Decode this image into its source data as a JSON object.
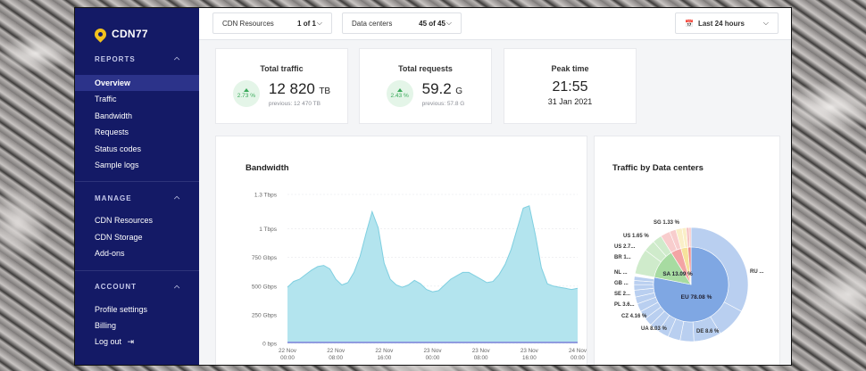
{
  "sidebar": {
    "logo": "CDN77",
    "sections": [
      {
        "title": "REPORTS",
        "items": [
          "Overview",
          "Traffic",
          "Bandwidth",
          "Requests",
          "Status codes",
          "Sample logs"
        ]
      },
      {
        "title": "MANAGE",
        "items": [
          "CDN Resources",
          "CDN Storage",
          "Add-ons"
        ]
      },
      {
        "title": "ACCOUNT",
        "items": [
          "Profile settings",
          "Billing",
          "Log out"
        ]
      }
    ]
  },
  "topbar": {
    "resources_label": "CDN Resources",
    "resources_value": "1 of 1",
    "dc_label": "Data centers",
    "dc_value": "45 of 45",
    "range_label": "Last 24 hours"
  },
  "stats": {
    "traffic": {
      "title": "Total traffic",
      "change": "2.73 %",
      "value": "12 820",
      "unit": "TB",
      "previous": "previous: 12 470 TB"
    },
    "requests": {
      "title": "Total requests",
      "change": "2.43 %",
      "value": "59.2",
      "unit": "G",
      "previous": "previous: 57.8 G"
    },
    "peak": {
      "title": "Peak time",
      "time": "21:55",
      "date": "31 Jan 2021"
    }
  },
  "bandwidth": {
    "title": "Bandwidth",
    "colors": {
      "area": "#b3e4ee",
      "line": "#7fcfe0",
      "baseline": "#7b6fd6"
    }
  },
  "traffic_dc": {
    "title": "Traffic by Data centers"
  },
  "chart_data": [
    {
      "type": "area",
      "title": "Bandwidth",
      "y_ticks": [
        "1.3 Tbps",
        "1 Tbps",
        "750 Gbps",
        "500 Gbps",
        "250 Gbps",
        "0 bps"
      ],
      "ylim": [
        0,
        1300
      ],
      "y_unit": "Gbps",
      "x_ticks": [
        "22 Nov 00:00",
        "22 Nov 08:00",
        "22 Nov 16:00",
        "23 Nov 00:00",
        "23 Nov 08:00",
        "23 Nov 16:00",
        "24 Nov 00:00"
      ],
      "x": [
        0,
        1,
        2,
        3,
        4,
        5,
        6,
        7,
        8,
        9,
        10,
        11,
        12,
        13,
        14,
        15,
        16,
        17,
        18,
        19,
        20,
        21,
        22,
        23,
        24,
        25,
        26,
        27,
        28,
        29,
        30,
        31,
        32,
        33,
        34,
        35,
        36,
        37,
        38,
        39,
        40,
        41,
        42,
        43,
        44,
        45,
        46,
        47,
        48
      ],
      "series": [
        {
          "values": [
            490,
            540,
            560,
            600,
            640,
            670,
            680,
            650,
            560,
            510,
            530,
            620,
            760,
            960,
            1150,
            1010,
            700,
            560,
            510,
            490,
            510,
            550,
            520,
            470,
            450,
            460,
            510,
            560,
            590,
            620,
            620,
            590,
            560,
            530,
            540,
            600,
            690,
            820,
            1000,
            1180,
            1200,
            950,
            660,
            520,
            500,
            490,
            480,
            470,
            480
          ]
        },
        {
          "values": [
            5,
            5,
            5,
            5,
            5,
            5,
            5,
            5,
            5,
            5,
            5,
            5,
            5,
            5,
            5,
            5,
            5,
            5,
            5,
            5,
            5,
            5,
            5,
            5,
            5,
            5,
            5,
            5,
            5,
            5,
            5,
            5,
            5,
            5,
            5,
            5,
            5,
            5,
            5,
            5,
            5,
            5,
            5,
            5,
            5,
            5,
            5,
            5,
            5
          ]
        }
      ]
    },
    {
      "type": "pie",
      "title": "Traffic by Data centers",
      "inner": [
        {
          "label": "EU 78.08 %",
          "value": 78.08,
          "color": "#7fa7e3"
        },
        {
          "label": "SA 13.09 %",
          "value": 13.09,
          "color": "#a7dba1"
        },
        {
          "label": "",
          "value": 4.5,
          "color": "#f3a4a4"
        },
        {
          "label": "",
          "value": 3.0,
          "color": "#f6e29b"
        },
        {
          "label": "",
          "value": 1.33,
          "color": "#ef8e8e"
        }
      ],
      "outer_labels": [
        "SG 1.33 %",
        "US 1.65 %",
        "US 2.7...",
        "BR 1...",
        "RU ...",
        "NL ...",
        "GB ...",
        "SE 2...",
        "PL 3.6...",
        "CZ 4.16 %",
        "UA 8.03 %",
        "DE 8.6 %"
      ]
    }
  ]
}
